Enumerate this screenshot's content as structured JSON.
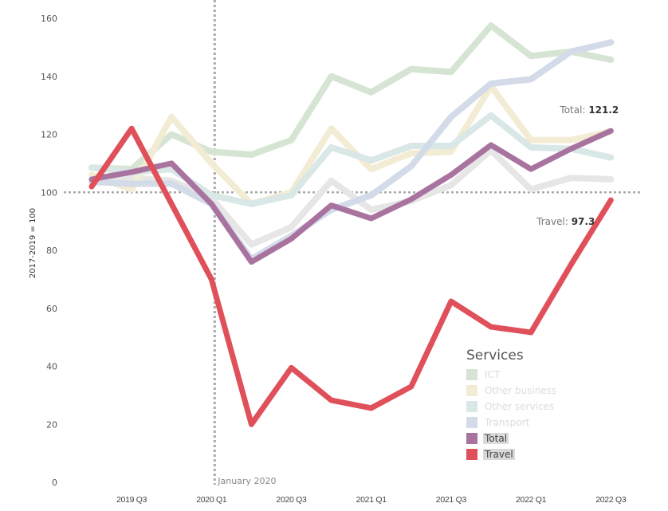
{
  "chart_data": {
    "type": "line",
    "title": "",
    "xlabel": "",
    "ylabel": "2017-2019 = 100",
    "ylim": [
      0,
      160
    ],
    "yticks": [
      0,
      20,
      40,
      60,
      80,
      100,
      120,
      140,
      160
    ],
    "x": [
      "2019 Q2",
      "2019 Q3",
      "2019 Q4",
      "2020 Q1",
      "2020 Q2",
      "2020 Q3",
      "2020 Q4",
      "2021 Q1",
      "2021 Q2",
      "2021 Q3",
      "2021 Q4",
      "2022 Q1",
      "2022 Q2",
      "2022 Q3"
    ],
    "xtick_labels": [
      "2019 Q3",
      "2020 Q1",
      "2020 Q3",
      "2021 Q1",
      "2021 Q3",
      "2022 Q1",
      "2022 Q3"
    ],
    "grid": false,
    "reference_line": {
      "axis": "y",
      "value": 100
    },
    "event_line": {
      "axis": "x",
      "at": "2020 Q1",
      "label": "January 2020"
    },
    "legend": {
      "title": "Services",
      "placement": "bottom-right"
    },
    "series": [
      {
        "name": "",
        "key": "grey",
        "color": "#e6e6e6",
        "in_legend": false,
        "highlight": false,
        "values": [
          104,
          105,
          104,
          98,
          82,
          88,
          104,
          94,
          97,
          102.5,
          114.5,
          101,
          105,
          104.5
        ]
      },
      {
        "name": "ICT",
        "key": "ict",
        "color": "#d6e4d3",
        "in_legend": true,
        "highlight": false,
        "values": [
          108.5,
          108,
          120,
          114,
          113,
          118,
          140,
          134.5,
          142.5,
          141.5,
          157.5,
          147,
          148.5,
          145.7
        ]
      },
      {
        "name": "Other business",
        "key": "other_business",
        "color": "#f3ecd4",
        "in_legend": true,
        "highlight": false,
        "values": [
          106,
          101,
          126,
          110,
          96,
          100,
          122,
          108,
          113.5,
          114,
          136.6,
          118,
          118,
          121
        ]
      },
      {
        "name": "Other services",
        "key": "other_services",
        "color": "#d9e7e6",
        "in_legend": true,
        "highlight": false,
        "values": [
          108.5,
          107,
          108,
          99,
          96,
          99,
          115.5,
          111,
          116,
          116,
          126.5,
          115.5,
          115,
          112
        ]
      },
      {
        "name": "Transport",
        "key": "transport",
        "color": "#d4dbe8",
        "in_legend": true,
        "highlight": false,
        "values": [
          103.6,
          103,
          103,
          96,
          77,
          85,
          94,
          99,
          109,
          126,
          137.5,
          139,
          148.5,
          151.7
        ]
      },
      {
        "name": "Total",
        "key": "total",
        "color": "#a9739f",
        "in_legend": true,
        "highlight": true,
        "values": [
          104.5,
          107,
          110,
          96,
          76,
          84,
          95.5,
          91,
          97.6,
          106,
          116.3,
          108,
          115,
          121.2
        ]
      },
      {
        "name": "Travel",
        "key": "travel",
        "color": "#e0505a",
        "in_legend": true,
        "highlight": true,
        "values": [
          102,
          122,
          96,
          70,
          20,
          39.5,
          28.3,
          25.6,
          33,
          62.4,
          53.6,
          51.7,
          75,
          97.3
        ]
      }
    ],
    "annotations": [
      {
        "series": "Total",
        "label": "Total:",
        "value": "121.2"
      },
      {
        "series": "Travel",
        "label": "Travel:",
        "value": "97.3"
      }
    ]
  }
}
